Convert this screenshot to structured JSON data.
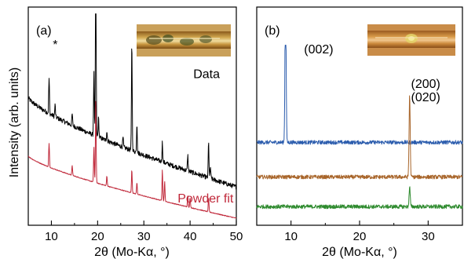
{
  "chart_data": [
    {
      "type": "line",
      "panel_label": "(a)",
      "xlabel": "2θ (Mo-Kα, °)",
      "ylabel": "Intensity (arb. units)",
      "xlim": [
        5,
        50
      ],
      "x_ticks": [
        10,
        20,
        30,
        40,
        50
      ],
      "y_ticks_labeled": false,
      "series": [
        {
          "name": "Data",
          "color": "#000000",
          "baseline_start": 0.62,
          "baseline_end": 0.16,
          "offset": 0.18,
          "peaks": [
            {
              "x": 9.5,
              "h": 0.18
            },
            {
              "x": 10.8,
              "h": 0.06
            },
            {
              "x": 14.5,
              "h": 0.06
            },
            {
              "x": 19.2,
              "h": 0.32
            },
            {
              "x": 19.6,
              "h": 1.0
            },
            {
              "x": 20.2,
              "h": 0.1
            },
            {
              "x": 22.0,
              "h": 0.05
            },
            {
              "x": 25.5,
              "h": 0.05
            },
            {
              "x": 27.4,
              "h": 0.56
            },
            {
              "x": 28.5,
              "h": 0.15
            },
            {
              "x": 34.0,
              "h": 0.1
            },
            {
              "x": 39.5,
              "h": 0.08
            },
            {
              "x": 44.0,
              "h": 0.18
            },
            {
              "x": 44.4,
              "h": 0.06
            }
          ]
        },
        {
          "name": "Powder fit",
          "color": "#c0283a",
          "baseline_start": 0.32,
          "baseline_end": 0.0,
          "offset": 0.0,
          "peaks": [
            {
              "x": 9.5,
              "h": 0.12
            },
            {
              "x": 14.5,
              "h": 0.05
            },
            {
              "x": 19.2,
              "h": 0.18
            },
            {
              "x": 19.6,
              "h": 0.42
            },
            {
              "x": 22.0,
              "h": 0.05
            },
            {
              "x": 27.4,
              "h": 0.12
            },
            {
              "x": 28.5,
              "h": 0.06
            },
            {
              "x": 34.0,
              "h": 0.16
            },
            {
              "x": 34.5,
              "h": 0.1
            },
            {
              "x": 39.5,
              "h": 0.06
            },
            {
              "x": 40.0,
              "h": 0.05
            },
            {
              "x": 44.0,
              "h": 0.07
            }
          ]
        }
      ],
      "annotations": [
        {
          "text": "*",
          "x": 10.3,
          "level": 0.87
        },
        {
          "text": "Data",
          "x": 40.7,
          "level": 0.72,
          "color": "#000000"
        },
        {
          "text": "Powder fit",
          "x": 37.3,
          "level": 0.08,
          "color": "#c0283a"
        }
      ],
      "inset": {
        "name": "crystal-photo-a",
        "description_colors": [
          "#b88a2c",
          "#5a5020",
          "#d9c07a"
        ]
      }
    },
    {
      "type": "line",
      "panel_label": "(b)",
      "xlabel": "2θ (Mo-Kα, °)",
      "xlim": [
        5,
        35
      ],
      "x_ticks": [
        10,
        20,
        30
      ],
      "y_ticks_labeled": false,
      "series": [
        {
          "name": "",
          "color": "#2b5cad",
          "baseline": 0.46,
          "peaks": [
            {
              "x": 9.2,
              "h": 1.0
            }
          ]
        },
        {
          "name": "",
          "color": "#a8652a",
          "baseline": 0.25,
          "peaks": [
            {
              "x": 27.3,
              "h": 0.5
            }
          ]
        },
        {
          "name": "",
          "color": "#2d8a2d",
          "baseline": 0.07,
          "peaks": [
            {
              "x": 27.3,
              "h": 0.12
            }
          ]
        }
      ],
      "annotations": [
        {
          "text": "(002)",
          "x": 11.9,
          "level": 1.0
        },
        {
          "text": "(200)",
          "x": 27.5,
          "level": 0.79
        },
        {
          "text": "(020)",
          "x": 27.5,
          "level": 0.71
        }
      ],
      "inset": {
        "name": "crystal-photo-b",
        "description_colors": [
          "#c2873a",
          "#8a6a2a",
          "#e2d070"
        ]
      }
    }
  ]
}
